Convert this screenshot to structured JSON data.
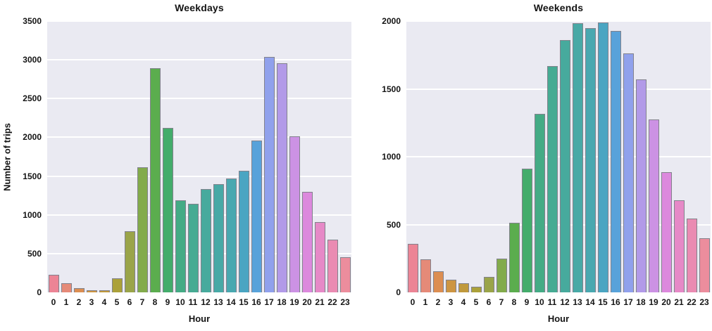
{
  "figure": {
    "background": "#ffffff",
    "plot_background": "#eaeaf2",
    "grid_color": "#ffffff",
    "text_color": "#141414",
    "bar_edge_color": "#82828c"
  },
  "palette": [
    "#ec8495",
    "#e58a78",
    "#dc8e52",
    "#cd9542",
    "#c0993c",
    "#aba13a",
    "#9aa449",
    "#83ab4c",
    "#5bad4e",
    "#43ac6b",
    "#44ab85",
    "#46ab93",
    "#47aa9d",
    "#48a9a6",
    "#49a8b0",
    "#4aa5c2",
    "#58a2da",
    "#90a1ec",
    "#b29ae8",
    "#cc92e4",
    "#dc89dd",
    "#e689c7",
    "#ea8bb2",
    "#ec8d9d"
  ],
  "chart_data": [
    {
      "type": "bar",
      "title": "Weekdays",
      "xlabel": "Hour",
      "ylabel": "Number of trips",
      "categories": [
        "0",
        "1",
        "2",
        "3",
        "4",
        "5",
        "6",
        "7",
        "8",
        "9",
        "10",
        "11",
        "12",
        "13",
        "14",
        "15",
        "16",
        "17",
        "18",
        "19",
        "20",
        "21",
        "22",
        "23"
      ],
      "values": [
        225,
        115,
        55,
        30,
        25,
        185,
        790,
        1610,
        2890,
        2120,
        1190,
        1140,
        1330,
        1400,
        1470,
        1570,
        1960,
        3040,
        2960,
        2010,
        1300,
        910,
        680,
        450
      ],
      "ylim": [
        0,
        3500
      ],
      "yticks": [
        0,
        500,
        1000,
        1500,
        2000,
        2500,
        3000,
        3500
      ],
      "grid": "horizontal",
      "legend": "none"
    },
    {
      "type": "bar",
      "title": "Weekends",
      "xlabel": "Hour",
      "ylabel": "",
      "categories": [
        "0",
        "1",
        "2",
        "3",
        "4",
        "5",
        "6",
        "7",
        "8",
        "9",
        "10",
        "11",
        "12",
        "13",
        "14",
        "15",
        "16",
        "17",
        "18",
        "19",
        "20",
        "21",
        "22",
        "23"
      ],
      "values": [
        355,
        245,
        155,
        95,
        65,
        40,
        115,
        250,
        515,
        910,
        1315,
        1670,
        1860,
        1985,
        1950,
        1990,
        1925,
        1760,
        1570,
        1275,
        885,
        680,
        545,
        400
      ],
      "ylim": [
        0,
        2000
      ],
      "yticks": [
        0,
        500,
        1000,
        1500,
        2000
      ],
      "grid": "horizontal",
      "legend": "none"
    }
  ]
}
